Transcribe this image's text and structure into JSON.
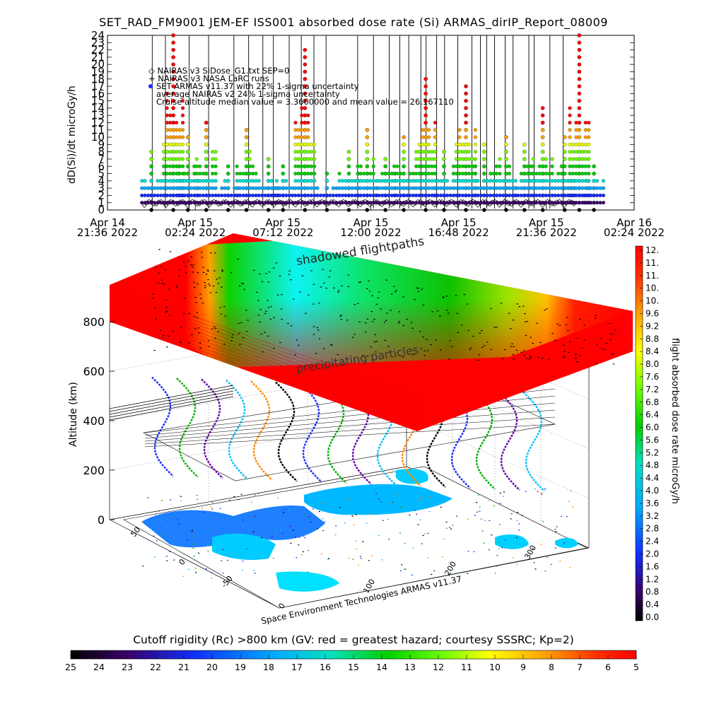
{
  "title": "SET_RAD_FM9001  JEM-EF ISS001 absorbed dose rate (Si) ARMAS_dirIP_Report_08009",
  "top_panel": {
    "ylabel": "dD(Si)/dt microGy/h",
    "y_ticks": [
      "0",
      "1",
      "2",
      "3",
      "4",
      "5",
      "6",
      "7",
      "8",
      "9",
      "10",
      "11",
      "12",
      "13",
      "14",
      "15",
      "16",
      "17",
      "18",
      "19",
      "20",
      "21",
      "22",
      "23",
      "24"
    ],
    "x_ticks": [
      {
        "date": "Apr 14",
        "time": "21:36 2022"
      },
      {
        "date": "Apr 15",
        "time": "02:24 2022"
      },
      {
        "date": "Apr 15",
        "time": "07:12 2022"
      },
      {
        "date": "Apr 15",
        "time": "12:00 2022"
      },
      {
        "date": "Apr 15",
        "time": "16:48 2022"
      },
      {
        "date": "Apr 15",
        "time": "21:36 2022"
      },
      {
        "date": "Apr 16",
        "time": "02:24 2022"
      }
    ],
    "legend": [
      "◇ NAIRAS v3 SiDose_G1.txt SEP=0",
      "+ NAIRAS v3 NASA LaRC runs",
      "SET ARMAS v11.37 with 22% 1-sigma uncertainty",
      "average NAIRAS v2 24% 1-sigma uncertainty",
      "Cruise altitude median value = 3.3600000 and mean value = 26.167110"
    ]
  },
  "globe_panel": {
    "label_top": "shadowed flightpaths",
    "label_mid": "precipitating particles",
    "altitude_label": "Altitude (km)",
    "altitude_ticks": [
      "0",
      "200",
      "400",
      "600",
      "800"
    ],
    "lat_ticks": [
      "50",
      "0",
      "-50"
    ],
    "lon_ticks": [
      "0",
      "100",
      "200",
      "300"
    ],
    "credit": "Space Environment Technologies ARMAS v11.37"
  },
  "right_colorbar": {
    "label": "flight absorbed dose rate microGy/h",
    "ticks": [
      "12.",
      "11.",
      "11.",
      "10.",
      "10.",
      "9.6",
      "9.2",
      "8.8",
      "8.4",
      "8.0",
      "7.6",
      "7.2",
      "6.8",
      "6.4",
      "6.0",
      "5.6",
      "5.2",
      "4.8",
      "4.4",
      "4.0",
      "3.6",
      "3.2",
      "2.8",
      "2.4",
      "2.0",
      "1.6",
      "1.2",
      "0.8",
      "0.4",
      "0.0"
    ]
  },
  "bottom_colorbar": {
    "caption": "Cutoff rigidity (Rc) >800 km (GV: red = greatest hazard; courtesy SSSRC; Kp=2)",
    "ticks": [
      "25",
      "24",
      "23",
      "22",
      "21",
      "20",
      "19",
      "18",
      "17",
      "16",
      "15",
      "14",
      "13",
      "12",
      "11",
      "10",
      "9",
      "8",
      "7",
      "6",
      "5"
    ]
  },
  "chart_data": {
    "type": "scatter",
    "title": "SET_RAD_FM9001  JEM-EF ISS001 absorbed dose rate (Si) ARMAS_dirIP_Report_08009",
    "ylabel": "dD(Si)/dt microGy/h",
    "ylim": [
      0,
      24
    ],
    "xlim": [
      "2022-04-14 21:36",
      "2022-04-16 02:24"
    ],
    "x_ticks": [
      "2022-04-14 21:36",
      "2022-04-15 02:24",
      "2022-04-15 07:12",
      "2022-04-15 12:00",
      "2022-04-15 16:48",
      "2022-04-15 21:36",
      "2022-04-16 02:24"
    ],
    "cruise_median": 3.36,
    "cruise_mean": 26.16711,
    "series": [
      {
        "name": "SET ARMAS v11.37 with 22% 1-sigma uncertainty",
        "x": [
          "2022-04-15 00:00",
          "2022-04-15 01:12",
          "2022-04-15 02:00",
          "2022-04-15 03:00",
          "2022-04-15 04:12",
          "2022-04-15 05:12",
          "2022-04-15 06:24",
          "2022-04-15 07:12",
          "2022-04-15 08:24",
          "2022-04-15 09:36",
          "2022-04-15 10:48",
          "2022-04-15 11:48",
          "2022-04-15 12:48",
          "2022-04-15 13:48",
          "2022-04-15 15:00",
          "2022-04-15 16:00",
          "2022-04-15 17:12",
          "2022-04-15 18:12",
          "2022-04-15 19:24",
          "2022-04-15 20:24",
          "2022-04-15 21:24",
          "2022-04-15 22:36",
          "2022-04-15 23:24",
          "2022-04-16 00:12"
        ],
        "y": [
          8,
          24,
          10,
          12,
          6,
          11,
          7,
          6,
          22,
          5,
          8,
          11,
          7,
          10,
          18,
          8,
          17,
          9,
          10,
          9,
          14,
          10,
          24,
          6
        ]
      }
    ]
  },
  "colors": {
    "cb_high": "#ff0000",
    "cb_low": "#000000",
    "background": "#ffffff"
  }
}
